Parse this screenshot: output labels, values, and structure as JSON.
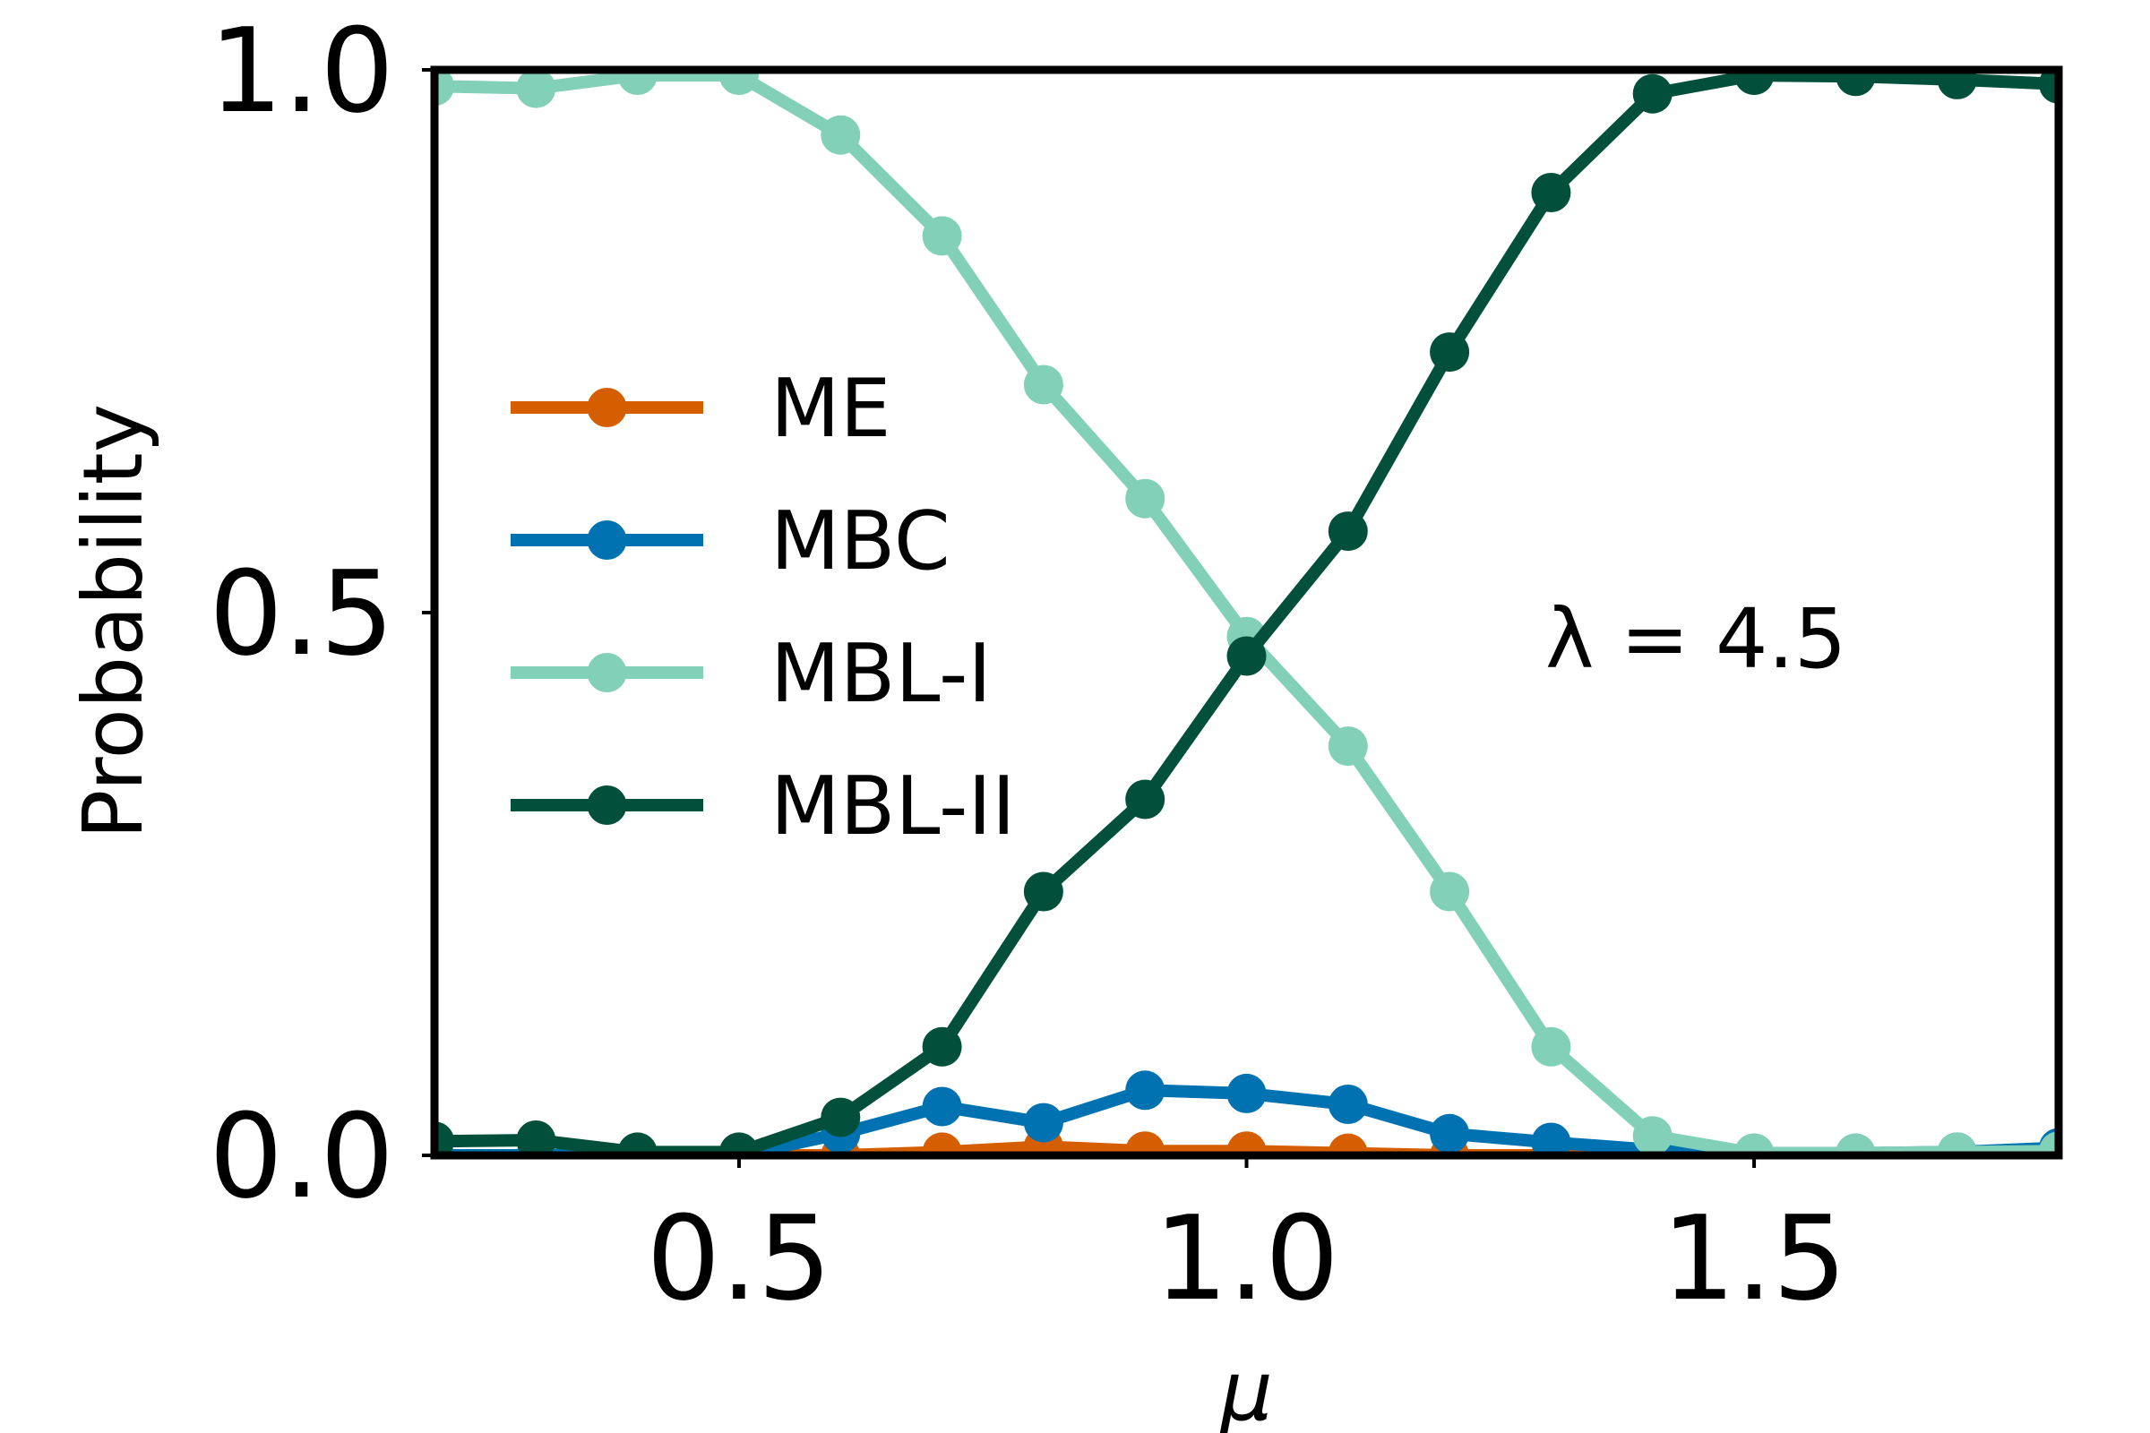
{
  "chart_data": {
    "type": "line",
    "title": "",
    "xlabel": "μ",
    "ylabel": "Probability",
    "xlim": [
      0.2,
      1.8
    ],
    "ylim": [
      0.0,
      1.0
    ],
    "xticks": [
      0.5,
      1.0,
      1.5
    ],
    "xtick_labels": [
      "0.5",
      "1.0",
      "1.5"
    ],
    "yticks": [
      0.0,
      0.5,
      1.0
    ],
    "ytick_labels": [
      "0.0",
      "0.5",
      "1.0"
    ],
    "annotation": "λ = 4.5",
    "legend_position": "center-left",
    "x": [
      0.2,
      0.3,
      0.4,
      0.5,
      0.6,
      0.7,
      0.8,
      0.9,
      1.0,
      1.1,
      1.2,
      1.3,
      1.4,
      1.5,
      1.6,
      1.7,
      1.8
    ],
    "series": [
      {
        "name": "ME",
        "color": "#d55e00",
        "values": [
          0.0,
          0.0,
          0.0,
          0.0,
          0.0,
          0.003,
          0.008,
          0.004,
          0.004,
          0.002,
          0.0,
          0.0,
          0.0,
          0.0,
          0.0,
          0.0,
          0.0
        ]
      },
      {
        "name": "MBC",
        "color": "#0072b2",
        "values": [
          0.0,
          0.0,
          0.0,
          0.0,
          0.02,
          0.045,
          0.03,
          0.06,
          0.057,
          0.047,
          0.02,
          0.012,
          0.005,
          0.002,
          0.002,
          0.003,
          0.007
        ]
      },
      {
        "name": "MBL-I",
        "color": "#82d0b8",
        "values": [
          0.985,
          0.983,
          0.995,
          0.995,
          0.94,
          0.847,
          0.71,
          0.605,
          0.478,
          0.377,
          0.243,
          0.1,
          0.018,
          0.002,
          0.002,
          0.003,
          0.004
        ]
      },
      {
        "name": "MBL-II",
        "color": "#02503b",
        "values": [
          0.013,
          0.014,
          0.003,
          0.003,
          0.035,
          0.1,
          0.243,
          0.328,
          0.46,
          0.575,
          0.74,
          0.887,
          0.978,
          0.995,
          0.994,
          0.991,
          0.987
        ]
      }
    ]
  }
}
